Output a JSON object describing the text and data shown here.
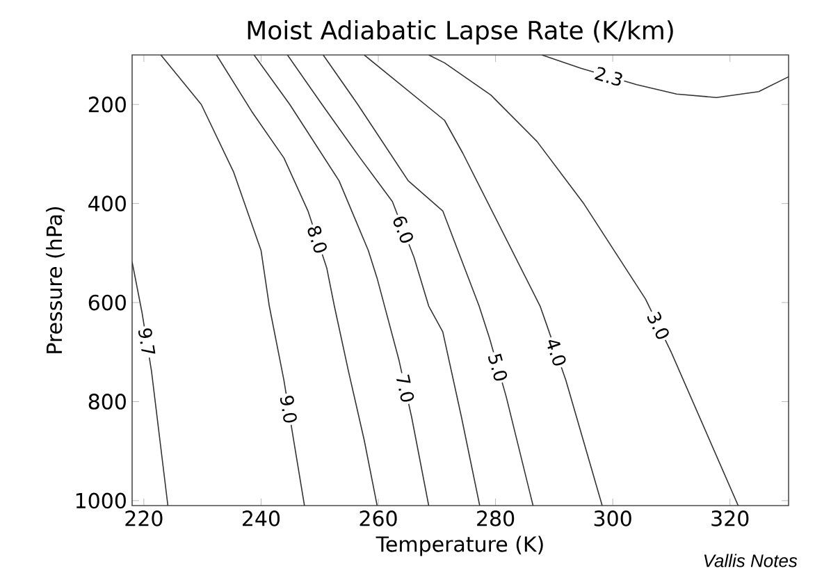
{
  "chart_data": {
    "type": "line",
    "title": "Moist Adiabatic Lapse Rate (K/km)",
    "xlabel": "Temperature (K)",
    "ylabel": "Pressure (hPa)",
    "xlim": [
      218,
      330
    ],
    "xticks": [
      220,
      240,
      260,
      280,
      300,
      320
    ],
    "ylim": [
      1010,
      100
    ],
    "yticks": [
      200,
      400,
      600,
      800,
      1000
    ],
    "annotations": [
      "Vallis Notes"
    ],
    "series": [
      {
        "name": "9.7",
        "color": "#333333",
        "x": [
          218,
          219.7,
          221.3,
          224.1
        ],
        "values": [
          518,
          621,
          738,
          1010
        ]
      },
      {
        "name": "9.0",
        "color": "#333333",
        "x": [
          222.9,
          229.8,
          235.3,
          240,
          241.4,
          243.9,
          245.5,
          247.4
        ],
        "values": [
          100,
          200,
          336,
          495,
          607,
          757,
          874,
          1010
        ]
      },
      {
        "name": "8.0",
        "color": "#333333",
        "x": [
          232.4,
          238.4,
          243.9,
          248,
          251.2,
          252.5,
          254.9,
          257.6,
          259.8
        ],
        "values": [
          100,
          214,
          308,
          415,
          530,
          607,
          738,
          878,
          1010
        ]
      },
      {
        "name": "7.0",
        "color": "#333333",
        "x": [
          238.8,
          244.9,
          253.3,
          258.3,
          259.8,
          263.5,
          265.7,
          268.6
        ],
        "values": [
          100,
          200,
          354,
          495,
          551,
          715,
          832,
          1010
        ]
      },
      {
        "name": "6.0",
        "color": "#333333",
        "x": [
          244.5,
          250.4,
          256.9,
          262.4,
          266.1,
          268.6,
          271,
          274.2,
          277.3
        ],
        "values": [
          100,
          200,
          308,
          396,
          509,
          607,
          659,
          832,
          1010
        ]
      },
      {
        "name": "5.0",
        "color": "#333333",
        "x": [
          250.6,
          256.5,
          265.1,
          271,
          277.2,
          279,
          281.8,
          286.4
        ],
        "values": [
          100,
          200,
          354,
          415,
          607,
          673,
          789,
          1010
        ]
      },
      {
        "name": "4.0",
        "color": "#333333",
        "x": [
          257.6,
          271.3,
          274.4,
          287.6,
          288.7,
          292,
          298.2
        ],
        "values": [
          100,
          232,
          298,
          607,
          644,
          757,
          1010
        ]
      },
      {
        "name": "3.0",
        "color": "#333333",
        "x": [
          268.6,
          271.3,
          279.2,
          287.1,
          295.1,
          305.6,
          310,
          321.4
        ],
        "values": [
          100,
          116,
          181,
          275,
          401,
          593,
          701,
          1010
        ]
      },
      {
        "name": "2.3",
        "color": "#333333",
        "x": [
          287.9,
          294.6,
          304.1,
          310.9,
          317.7,
          324.9,
          330
        ],
        "values": [
          100,
          127,
          160,
          179,
          186,
          174,
          144
        ]
      }
    ]
  }
}
